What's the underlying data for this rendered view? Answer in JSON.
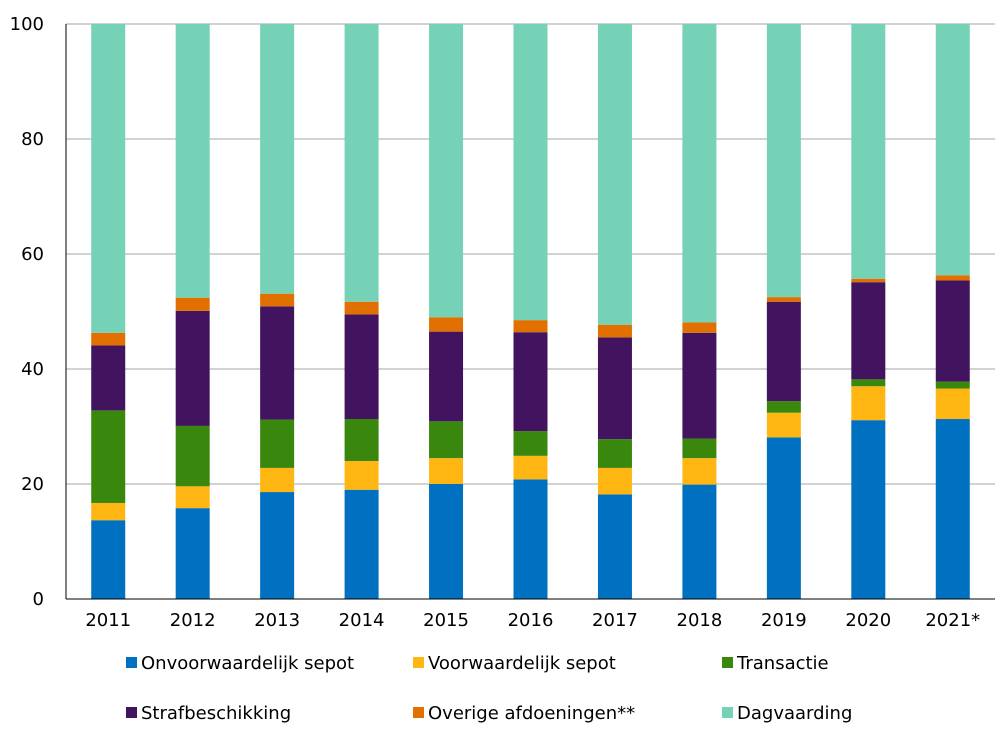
{
  "chart_data": {
    "type": "bar",
    "stacked": true,
    "categories": [
      "2011",
      "2012",
      "2013",
      "2014",
      "2015",
      "2016",
      "2017",
      "2018",
      "2019",
      "2020",
      "2021*"
    ],
    "ylim": [
      0,
      100
    ],
    "yticks": [
      0,
      20,
      40,
      60,
      80,
      100
    ],
    "grid": true,
    "legend_position": "bottom",
    "series": [
      {
        "name": "Onvoorwaardelijk sepot",
        "color": "#0070C0",
        "values": [
          13.7,
          15.8,
          18.6,
          19.0,
          20.0,
          20.8,
          18.2,
          19.9,
          28.1,
          31.1,
          31.3
        ]
      },
      {
        "name": "Voorwaardelijk sepot",
        "color": "#FFB612",
        "values": [
          3.0,
          3.8,
          4.2,
          5.0,
          4.5,
          4.1,
          4.6,
          4.6,
          4.3,
          5.9,
          5.3
        ]
      },
      {
        "name": "Transactie",
        "color": "#39870C",
        "values": [
          16.1,
          10.5,
          8.4,
          7.3,
          6.4,
          4.3,
          5.0,
          3.4,
          2.0,
          1.2,
          1.2
        ]
      },
      {
        "name": "Strafbeschikking",
        "color": "#42145F",
        "values": [
          11.3,
          20.0,
          19.7,
          18.2,
          15.6,
          17.2,
          17.7,
          18.4,
          17.3,
          16.9,
          17.6
        ]
      },
      {
        "name": "Overige afdoeningen**",
        "color": "#E17000",
        "values": [
          2.2,
          2.3,
          2.2,
          2.2,
          2.5,
          2.1,
          2.2,
          1.8,
          0.8,
          0.6,
          0.9
        ]
      },
      {
        "name": "Dagvaarding",
        "color": "#76D2B6",
        "values": [
          53.7,
          47.6,
          46.9,
          48.3,
          51.0,
          51.5,
          52.3,
          51.9,
          47.5,
          44.3,
          43.7
        ]
      }
    ]
  }
}
